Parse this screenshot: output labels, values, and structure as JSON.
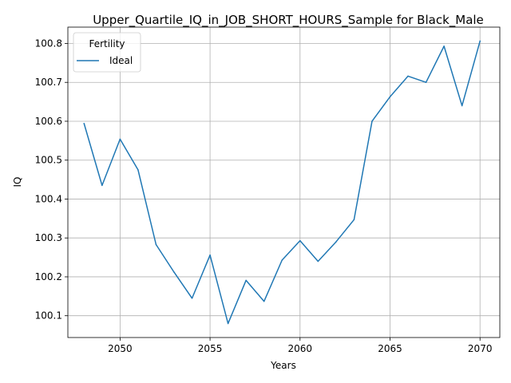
{
  "chart_data": {
    "type": "line",
    "title": "Upper_Quartile_IQ_in_JOB_SHORT_HOURS_Sample for Black_Male",
    "xlabel": "Years",
    "ylabel": "IQ",
    "xlim": [
      2047.1,
      2071.1
    ],
    "ylim": [
      100.044,
      100.842
    ],
    "xticks": [
      2050,
      2055,
      2060,
      2065,
      2070
    ],
    "xtick_labels": [
      "2050",
      "2055",
      "2060",
      "2065",
      "2070"
    ],
    "yticks": [
      100.1,
      100.2,
      100.3,
      100.4,
      100.5,
      100.6,
      100.7,
      100.8
    ],
    "ytick_labels": [
      "100.1",
      "100.2",
      "100.3",
      "100.4",
      "100.5",
      "100.6",
      "100.7",
      "100.8"
    ],
    "grid": true,
    "legend": {
      "title": "Fertility",
      "position": "top-left"
    },
    "series": [
      {
        "name": "Ideal",
        "color": "#1f77b4",
        "x": [
          2048,
          2049,
          2050,
          2051,
          2052,
          2053,
          2054,
          2055,
          2056,
          2057,
          2058,
          2059,
          2060,
          2061,
          2062,
          2063,
          2064,
          2065,
          2066,
          2067,
          2068,
          2069,
          2070
        ],
        "y": [
          100.594,
          100.435,
          100.554,
          100.475,
          100.283,
          100.212,
          100.145,
          100.256,
          100.08,
          100.191,
          100.137,
          100.243,
          100.293,
          100.24,
          100.29,
          100.347,
          100.6,
          100.663,
          100.716,
          100.7,
          100.793,
          100.64,
          100.806
        ]
      }
    ]
  }
}
